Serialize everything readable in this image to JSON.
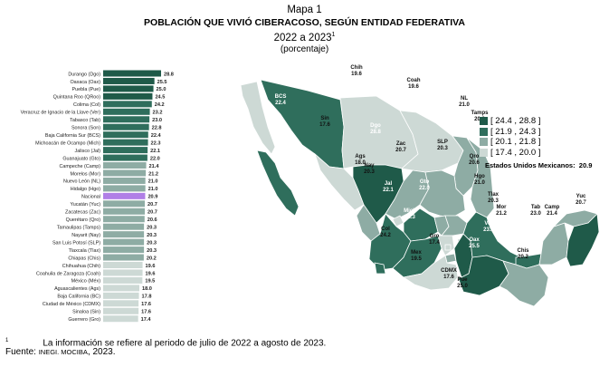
{
  "header": {
    "map_label": "Mapa 1",
    "title": "POBLACIÓN QUE VIVIÓ CIBERACOSO, SEGÚN ENTIDAD FEDERATIVA",
    "period": "2022 a 2023",
    "period_note_ref": "1",
    "unit": "(porcentaje)"
  },
  "legend": {
    "items": [
      {
        "label": "[ 24.4 , 28.8 ]",
        "color": "#1f5a49"
      },
      {
        "label": "[ 21.9 , 24.3 ]",
        "color": "#2f6e5c"
      },
      {
        "label": "[ 20.1 , 21.8 ]",
        "color": "#8eaca4"
      },
      {
        "label": "[ 17.4 , 20.0 ]",
        "color": "#cdd9d5"
      }
    ],
    "total_label": "Estados Unidos Mexicanos:",
    "total_value": "20.9"
  },
  "chart_data": {
    "type": "bar",
    "orientation": "horizontal",
    "title": "POBLACIÓN QUE VIVIÓ CIBERACOSO, SEGÚN ENTIDAD FEDERATIVA",
    "xlabel": "",
    "ylabel": "",
    "xlim": [
      0,
      28.8
    ],
    "grid": false,
    "categories": [
      "Durango (Dgo)",
      "Oaxaca (Oax)",
      "Puebla (Pue)",
      "Quintana Roo (QRoo)",
      "Colima (Col)",
      "Veracruz de Ignacio de la Llave (Ver)",
      "Tabasco (Tab)",
      "Sonora (Son)",
      "Baja California Sur (BCS)",
      "Michoacán de Ocampo (Mich)",
      "Jalisco (Jal)",
      "Guanajuato (Gto)",
      "Campeche (Camp)",
      "Morelos (Mor)",
      "Nuevo León (NL)",
      "Hidalgo (Hgo)",
      "Nacional",
      "Yucatán (Yuc)",
      "Zacatecas (Zac)",
      "Querétaro (Qro)",
      "Tamaulipas (Tamps)",
      "Nayarit (Nay)",
      "San Luis Potosí (SLP)",
      "Tlaxcala (Tlax)",
      "Chiapas (Chis)",
      "Chihuahua (Chih)",
      "Coahuila de Zaragoza (Coah)",
      "México (Méx)",
      "Aguascalientes (Ags)",
      "Baja California (BC)",
      "Ciudad de México (CDMX)",
      "Sinaloa (Sin)",
      "Guerrero (Gro)"
    ],
    "values": [
      28.8,
      25.5,
      25.0,
      24.5,
      24.2,
      23.2,
      23.0,
      22.8,
      22.4,
      22.3,
      22.1,
      22.0,
      21.4,
      21.2,
      21.0,
      21.0,
      20.9,
      20.7,
      20.7,
      20.6,
      20.3,
      20.3,
      20.3,
      20.3,
      20.2,
      19.6,
      19.6,
      19.5,
      18.0,
      17.8,
      17.6,
      17.6,
      17.4
    ],
    "value_labels": [
      "28.8",
      "25.5",
      "25.0",
      "24.5",
      "24.2",
      "23.2",
      "23.0",
      "22.8",
      "22.4",
      "22.3",
      "22.1",
      "22.0",
      "21.4",
      "21.2",
      "21.0",
      "21.0",
      "20.9",
      "20.7",
      "20.7",
      "20.6",
      "20.3",
      "20.3",
      "20.3",
      "20.3",
      "20.2",
      "19.6",
      "19.6",
      "19.5",
      "18.0",
      "17.8",
      "17.6",
      "17.6",
      "17.4"
    ],
    "highlight_color": "#b07fe6",
    "highlight_category": "Nacional"
  },
  "map_states": [
    {
      "abbr": "BC",
      "value": "17.8"
    },
    {
      "abbr": "Son",
      "value": "22.8"
    },
    {
      "abbr": "Chih",
      "value": "19.6"
    },
    {
      "abbr": "Coah",
      "value": "19.6"
    },
    {
      "abbr": "BCS",
      "value": "22.4"
    },
    {
      "abbr": "Sin",
      "value": "17.6"
    },
    {
      "abbr": "NL",
      "value": "21.0"
    },
    {
      "abbr": "Dgo",
      "value": "28.8"
    },
    {
      "abbr": "Tamps",
      "value": "20.3"
    },
    {
      "abbr": "Zac",
      "value": "20.7"
    },
    {
      "abbr": "SLP",
      "value": "20.3"
    },
    {
      "abbr": "Ags",
      "value": "18.0"
    },
    {
      "abbr": "Nay",
      "value": "20.3"
    },
    {
      "abbr": "Qro",
      "value": "20.6"
    },
    {
      "abbr": "Gto",
      "value": "22.0"
    },
    {
      "abbr": "Hgo",
      "value": "21.0"
    },
    {
      "abbr": "Jal",
      "value": "22.1"
    },
    {
      "abbr": "Tlax",
      "value": "20.3"
    },
    {
      "abbr": "Mich",
      "value": "22.3"
    },
    {
      "abbr": "Mor",
      "value": "21.2"
    },
    {
      "abbr": "Tab",
      "value": "23.0"
    },
    {
      "abbr": "Col",
      "value": "24.2"
    },
    {
      "abbr": "Ver",
      "value": "23.2"
    },
    {
      "abbr": "Mex",
      "value": "19.5"
    },
    {
      "abbr": "Gro",
      "value": "17.4"
    },
    {
      "abbr": "Oax",
      "value": "25.5"
    },
    {
      "abbr": "CDMX",
      "value": "17.6"
    },
    {
      "abbr": "Pue",
      "value": "25.0"
    },
    {
      "abbr": "Chis",
      "value": "20.2"
    },
    {
      "abbr": "Camp",
      "value": "21.4"
    },
    {
      "abbr": "Yuc",
      "value": "20.7"
    },
    {
      "abbr": "QRoo",
      "value": "24.5"
    }
  ],
  "footer": {
    "note_marker": "1",
    "note": "La información se refiere al periodo de julio de 2022 a agosto de 2023.",
    "source_label": "Fuente:",
    "source_org": "INEGI. MOCIBA",
    "source_year": ", 2023."
  }
}
